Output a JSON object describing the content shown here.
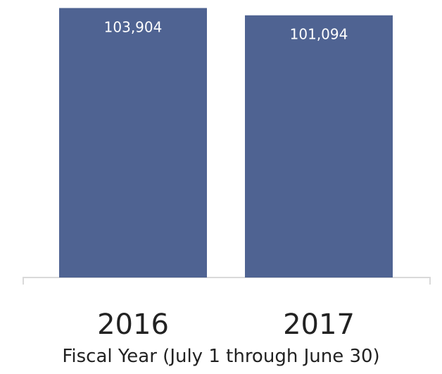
{
  "chart_data": {
    "type": "bar",
    "categories": [
      "2016",
      "2017"
    ],
    "values": [
      103904,
      101094
    ],
    "value_labels": [
      "103,904",
      "101,094"
    ],
    "title": "",
    "xlabel": "Fiscal Year (July 1 through June 30)",
    "ylabel": "",
    "ylim": [
      0,
      107000
    ],
    "grid": false,
    "legend": "none",
    "bar_color": "#4f6392",
    "axis_color": "#d9d9d9"
  }
}
